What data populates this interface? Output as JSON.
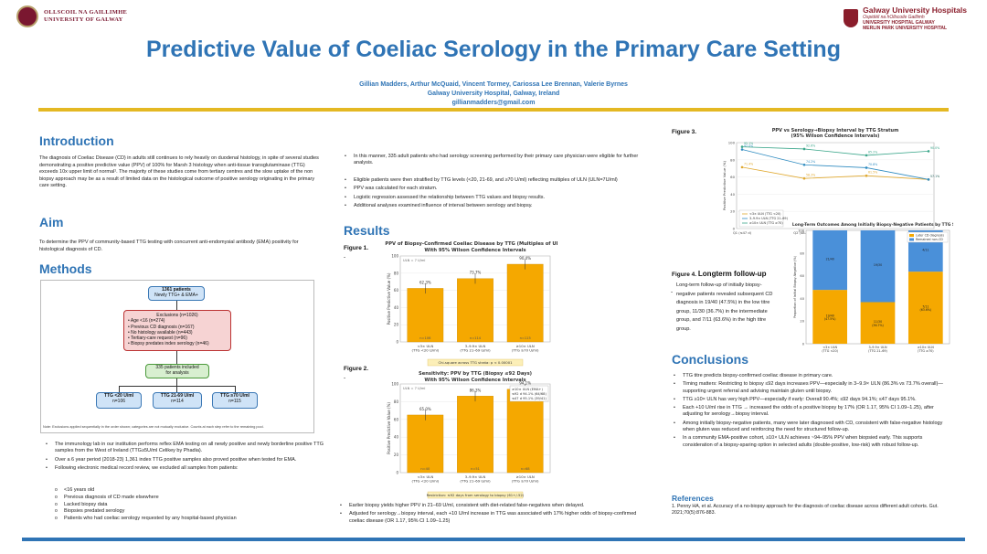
{
  "header": {
    "uni_line1": "OLLSCOIL NA GAILLIMHE",
    "uni_line2": "UNIVERSITY OF GALWAY",
    "hosp_line1": "Galway University Hospitals",
    "hosp_line2": "Ospidéil na hOllscoile Gaillimh",
    "hosp_line3": "UNIVERSITY HOSPITAL GALWAY",
    "hosp_line4": "MERLIN PARK UNIVERSITY HOSPITAL"
  },
  "title": "Predictive Value of Coeliac Serology in the Primary Care Setting",
  "authors": "Gillian Madders, Arthur McQuaid, Vincent Tormey, Cariossa Lee Brennan, Valerie Byrnes",
  "affiliation": "Galway University Hospital, Galway, Ireland",
  "email": "gillianmadders@gmail.com",
  "introduction": {
    "heading": "Introduction",
    "text": "The diagnosis of Coeliac Disease (CD) in adults still continues to rely heavily on duodenal histology, in spite of several studies demonstrating a positive predictive value (PPV) of 100% for Marsh 3 histology when anti-tissue transglutaminase (TTG) exceeds 10x upper limit of normal¹. The majority of these studies come from tertiary centres and the slow uptake of the non biopsy approach may be as a result of limited data on the histological outcome of positive serology originating in the primary care setting."
  },
  "aim": {
    "heading": "Aim",
    "text": "To determine the PPV of community-based TTG testing with concurrent anti-endomysial antibody (EMA) positivity for histological diagnosis of CD."
  },
  "methods": {
    "heading": "Methods",
    "flow": {
      "box1_line1": "1361 patients",
      "box1_line2": "Newly TTG+ & EMA+",
      "excl_title": "Exclusions (n=1026)",
      "excl_items": [
        "• Age <16 (n=274)",
        "• Previous CD diagnosis (n=167)",
        "• No histology available (n=443)",
        "• Tertiary-care request (n=96)",
        "• Biopsy predates index serology (n=46)"
      ],
      "included_line1": "335 patients included",
      "included_line2": "for analysis",
      "g1_line1": "TTG <20 U/ml",
      "g1_line2": "n=106",
      "g2_line1": "TTG 21-69 U/ml",
      "g2_line2": "n=114",
      "g3_line1": "TTG ≥70 U/ml",
      "g3_line2": "n=115",
      "note": "Note: Exclusions applied sequentially in the order shown; categories are not mutually exclusive. Counts at each step refer to the remaining pool."
    },
    "bullets": [
      "The immunology lab in our institution performs reflex EMA testing on all newly positive and newly borderline positive TTG samples from the West of Ireland (TTG≥5U/ml Celikey by Phadia).",
      "Over a 6 year period (2018-23) 1,361 index TTG positive samples also proved positive when tested for EMA.",
      "Following electronic medical record review, we excluded all samples from patients:"
    ],
    "sub_bullets": [
      "<16 years old",
      "Previous diagnosis of CD made elsewhere",
      "Lacked biopsy data",
      "Biopsies predated serology",
      "Patients who had coeliac serology requested by any hospital-based physician"
    ]
  },
  "middle_bullets_top": [
    "In this manner, 335 adult patients who had serology screening performed by their primary care physician were eligible for further analysis."
  ],
  "middle_bullets": [
    "Eligible patients were then stratified by TTG levels (<20, 21-69, and ≥70 U/ml) reflecting multiples of ULN (ULN=7U/ml)",
    "PPV was calculated for each stratum.",
    "Logistic regression assessed the relationship between TTG values and biopsy results.",
    "Additional analyses examined influence of interval between serology and biopsy."
  ],
  "results": {
    "heading": "Results",
    "fig1_label": "Figure 1.",
    "fig1_dash": "-",
    "fig2_label": "Figure 2.",
    "fig2_dash": "-",
    "bullets": [
      "Earlier biopsy yields higher PPV in 21–69 U/ml, consistent with diet-related false-negatives when delayed.",
      "Adjusted for serology→biopsy interval, each +10 U/ml increase in TTG was associated with 17% higher odds of biopsy-confirmed coeliac disease (OR 1.17, 95% CI 1.09–1.25)"
    ]
  },
  "figure3": {
    "label": "Figure 3."
  },
  "figure4": {
    "label_prefix": "Figure 4.",
    "label_bold": "Longterm follow-up",
    "text": "Long-term follow-up of initially biopsy-negative patients revealed subsequent CD diagnosis in 19/40 (47.5%) in the low titre group, 11/30 (36.7%) in the intermediate group, and 7/11 (63.6%) in the high titre group.",
    "dash": "-"
  },
  "conclusions": {
    "heading": "Conclusions",
    "bullets": [
      "TTG titre predicts biopsy-confirmed coeliac disease in primary care.",
      "Timing matters: Restricting to biopsy ≤92 days increases PPV—especially in 3–9.9× ULN (86.3% vs 73.7% overall)—supporting urgent referral and advising maintain gluten until biopsy.",
      "TTG ≥10× ULN has very high PPV—especially if early: Overall 90.4%; ≤92 days 94.1%; ≤47 days 95.1%.",
      "Each +10 U/ml rise in TTG → increased the odds of a positive biopsy by 17% (OR 1.17, 95% CI 1.09–1.25), after adjusting for serology→biopsy interval.",
      "Among initially biopsy-negative patients, many were later diagnosed with CD, consistent with false-negative histology when gluten was reduced and reinforcing the need for structured follow-up.",
      "In a community EMA-positive cohort, ≥10× ULN achieves ~94–95% PPV when biopsied early. This supports consideration of a biopsy-sparing option in selected adults (double-positive, low-risk) with robust follow-up."
    ]
  },
  "references": {
    "heading": "References",
    "text": "1. Penny HA, et al. Accuracy of a no-biopsy approach for the diagnosis of coeliac disease across different adult cohorts. Gut. 2021;70(5):876-883."
  },
  "colors": {
    "title_blue": "#2f74b5",
    "gold": "#e4b823",
    "bar_orange": "#f5a800",
    "bar_blue": "#4a90d9"
  },
  "chart_data": [
    {
      "type": "bar",
      "title": "PPV of Biopsy-Confirmed Coeliac Disease by TTG (Multiples of ULN)",
      "subtitle": "With 95% Wilson Confidence Intervals",
      "ylabel": "Positive Predictive Value (%)",
      "ylim": [
        0,
        100
      ],
      "yticks": [
        "0",
        "20",
        "40",
        "60",
        "80",
        "100"
      ],
      "ref_line_label": "ULN = 7 U/ml",
      "categories": [
        "<3× ULN\n(TTG <20 U/ml)",
        "3–9.9× ULN\n(TTG 21–69 U/ml)",
        "≥10× ULN\n(TTG ≥70 U/ml)"
      ],
      "values": [
        62.3,
        73.7,
        90.4
      ],
      "value_labels": [
        "62.3%",
        "73.7%",
        "90.4%"
      ],
      "n_labels": [
        "n=106",
        "n=114",
        "n=115"
      ],
      "footnote": "Chi-square across TTG strata: p < 0.00001"
    },
    {
      "type": "bar",
      "title": "Sensitivity: PPV by TTG (Biopsy ≤92 Days)",
      "subtitle": "With 95% Wilson Confidence Intervals",
      "ylabel": "Positive Predictive Value (%)",
      "ylim": [
        0,
        100
      ],
      "yticks": [
        "0",
        "20",
        "40",
        "60",
        "80",
        "100"
      ],
      "ref_line_label": "ULN = 7 U/ml",
      "categories": [
        "<3× ULN\n(TTG <20 U/ml)",
        "3–9.9× ULN\n(TTG 21–69 U/ml)",
        "≥10× ULN\n(TTG ≥70 U/ml)"
      ],
      "values": [
        65.0,
        86.3,
        94.1
      ],
      "value_labels": [
        "65.0%",
        "86.3%",
        "94.1%"
      ],
      "n_labels": [
        "n=40",
        "n=51",
        "n=68"
      ],
      "annotation": [
        "≥10× ULN (EMA+)",
        "≤92 d 94.1% (64/68)",
        "≤47 d 95.1% (39/41)"
      ],
      "footnote": "Restriction: ≤92 days from serology to biopsy (61+/-52)"
    },
    {
      "type": "line",
      "title": "PPV vs Serology→Biopsy Interval by TTG Stratum",
      "subtitle": "(95% Wilson Confidence Intervals)",
      "ylabel": "Positive Predictive Value (%)",
      "ylim": [
        0,
        100
      ],
      "yticks": [
        "0",
        "20",
        "40",
        "60",
        "80",
        "100"
      ],
      "categories": [
        "Q1 (≤47 d)",
        "Q2 (48–92 d)",
        "Q3 (93–200 d)",
        "Q4 (>200 d)"
      ],
      "series": [
        {
          "name": "<3× ULN (TTG <20)",
          "values": [
            71.4,
            58.3,
            61.5,
            57.1
          ]
        },
        {
          "name": "3–9.9× ULN (TTG 21–69)",
          "values": [
            92.0,
            74.2,
            70.8,
            57.1
          ]
        },
        {
          "name": "≥10× ULN (TTG ≥70)",
          "values": [
            95.1,
            92.6,
            85.2,
            90.0
          ]
        }
      ]
    },
    {
      "type": "bar",
      "title": "Long-Term Outcomes Among Initially Biopsy-Negative Patients by TTG Stratum",
      "ylabel": "Proportion of Initial Biopsy-Negative (%)",
      "ylim": [
        0,
        100
      ],
      "yticks": [
        "0",
        "20",
        "40",
        "60",
        "80",
        "100"
      ],
      "categories": [
        "<3× ULN\n(TTG <20)",
        "3–9.9× ULN\n(TTG 21–69)",
        "≥10× ULN\n(TTG ≥70)"
      ],
      "series": [
        {
          "name": "Later CD diagnosis",
          "values": [
            47.5,
            36.7,
            63.6
          ],
          "labels": [
            "19/40\n(47.5%)",
            "11/30\n(36.7%)",
            "7/11\n(63.6%)"
          ]
        },
        {
          "name": "Remained non-CD",
          "values": [
            52.5,
            63.3,
            36.4
          ],
          "labels": [
            "21/40",
            "19/30",
            "4/11"
          ]
        }
      ],
      "legend": "top-right"
    }
  ]
}
